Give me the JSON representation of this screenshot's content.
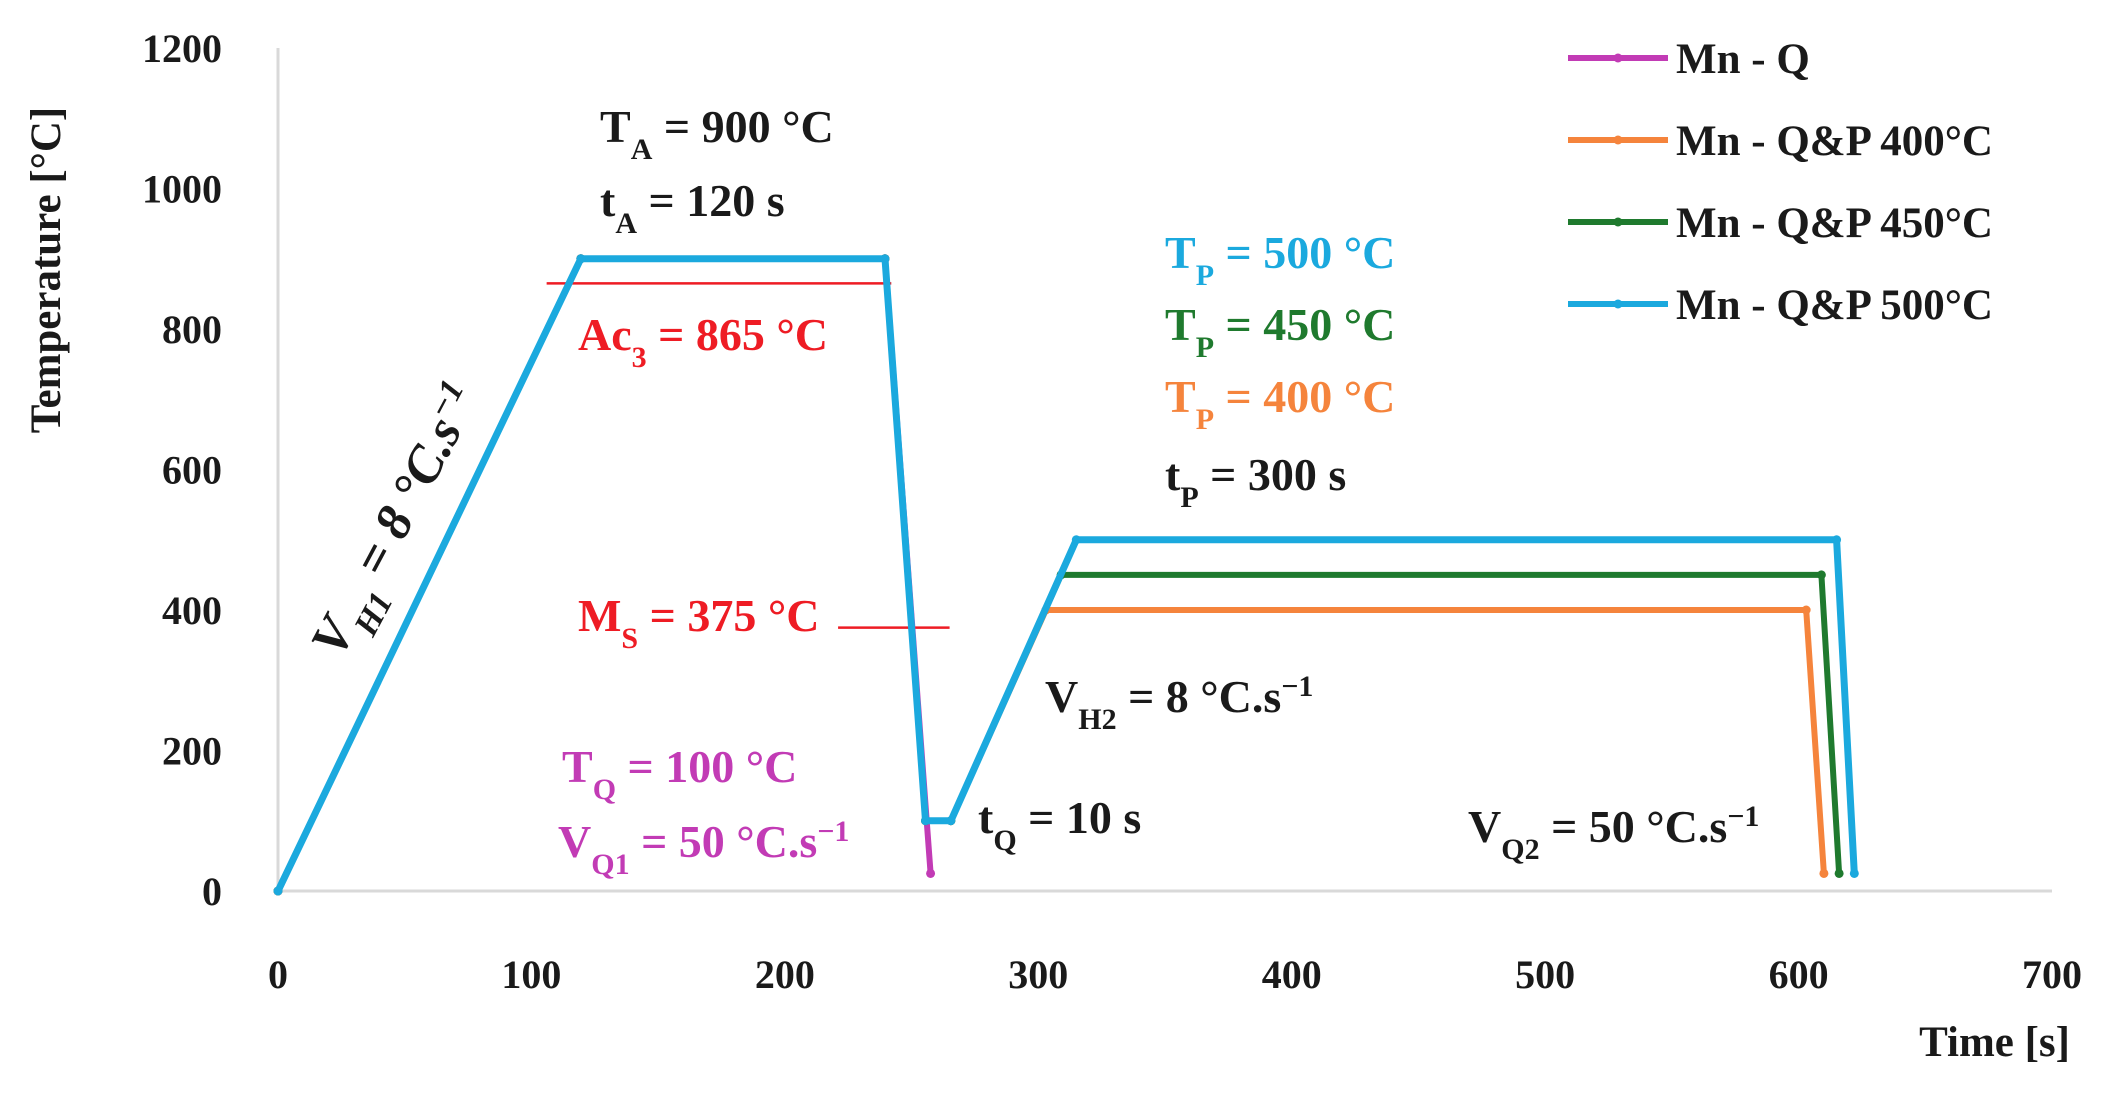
{
  "chart_data": {
    "type": "line",
    "title": "",
    "xlabel": "Time [s]",
    "ylabel": "Temperature [°C]",
    "xlim": [
      0,
      700
    ],
    "ylim": [
      0,
      1200
    ],
    "x_ticks": [
      0,
      100,
      200,
      300,
      400,
      500,
      600,
      700
    ],
    "y_ticks": [
      0,
      200,
      400,
      600,
      800,
      1000,
      1200
    ],
    "grid": false,
    "legend": "top-right",
    "colors": {
      "mn_q": "#c23bb5",
      "qp400": "#f5843c",
      "qp450": "#1f7a2e",
      "qp500": "#1ba9de",
      "critical": "#ee1c24",
      "annotation": "#1a1a1a",
      "axis": "#d9d9d9"
    },
    "series": [
      {
        "name": "Mn - Q",
        "color": "#c23bb5",
        "points": [
          [
            0,
            0
          ],
          [
            119.5,
            900
          ],
          [
            239.5,
            900
          ],
          [
            257.5,
            25
          ]
        ]
      },
      {
        "name": "Mn - Q&P 400°C",
        "color": "#f5843c",
        "points": [
          [
            0,
            0
          ],
          [
            119.5,
            900
          ],
          [
            239.5,
            900
          ],
          [
            255.5,
            100
          ],
          [
            265.5,
            100
          ],
          [
            303,
            400
          ],
          [
            603,
            400
          ],
          [
            610,
            25
          ]
        ]
      },
      {
        "name": "Mn - Q&P 450°C",
        "color": "#1f7a2e",
        "points": [
          [
            0,
            0
          ],
          [
            119.5,
            900
          ],
          [
            239.5,
            900
          ],
          [
            255.5,
            100
          ],
          [
            265.5,
            100
          ],
          [
            309,
            450
          ],
          [
            609,
            450
          ],
          [
            616,
            25
          ]
        ]
      },
      {
        "name": "Mn - Q&P 500°C",
        "color": "#1ba9de",
        "points": [
          [
            0,
            0
          ],
          [
            119.5,
            900
          ],
          [
            239.5,
            900
          ],
          [
            255.5,
            100
          ],
          [
            265.5,
            100
          ],
          [
            315,
            500
          ],
          [
            615,
            500
          ],
          [
            622,
            25
          ]
        ]
      }
    ],
    "reference_lines": [
      {
        "name": "Ac3",
        "y": 865,
        "x_range": [
          106,
          242
        ],
        "color": "#ee1c24"
      },
      {
        "name": "Ms",
        "y": 375,
        "x_range": [
          221,
          265
        ],
        "color": "#ee1c24"
      }
    ],
    "annotations": {
      "ta": {
        "main": "T",
        "sub": "A",
        "rest": " = 900 °C",
        "color": "#1a1a1a"
      },
      "tta": {
        "main": "t",
        "sub": "A",
        "rest": " = 120 s",
        "color": "#1a1a1a"
      },
      "ac3": {
        "main": "Ac",
        "sub": "3",
        "rest": " = 865 °C",
        "color": "#ee1c24"
      },
      "tp500": {
        "main": "T",
        "sub": "P",
        "rest": " = 500 °C",
        "color": "#1ba9de"
      },
      "tp450": {
        "main": "T",
        "sub": "P",
        "rest": " = 450 °C",
        "color": "#1f7a2e"
      },
      "tp400": {
        "main": "T",
        "sub": "P",
        "rest": " = 400 °C",
        "color": "#f5843c"
      },
      "ttp": {
        "main": "t",
        "sub": "P",
        "rest": " = 300 s",
        "color": "#1a1a1a"
      },
      "ms": {
        "main": "M",
        "sub": "S",
        "rest": " = 375 °C",
        "color": "#ee1c24"
      },
      "vh2": {
        "main": "V",
        "sub": "H2",
        "rest": " = 8 °C.s",
        "sup": "−1",
        "color": "#1a1a1a"
      },
      "tq": {
        "main": "T",
        "sub": "Q",
        "rest": " = 100 °C",
        "color": "#c23bb5"
      },
      "vq1": {
        "main": "V",
        "sub": "Q1",
        "rest": " = 50 °C.s",
        "sup": "−1",
        "color": "#c23bb5"
      },
      "ttq": {
        "main": "t",
        "sub": "Q",
        "rest": " = 10 s",
        "color": "#1a1a1a"
      },
      "vq2": {
        "main": "V",
        "sub": "Q2",
        "rest": " = 50 °C.s",
        "sup": "−1",
        "color": "#1a1a1a"
      },
      "vh1": {
        "main": "V",
        "sub": "H1",
        "rest": " = 8 °C.s",
        "sup": "−1",
        "color": "#1a1a1a"
      }
    }
  }
}
